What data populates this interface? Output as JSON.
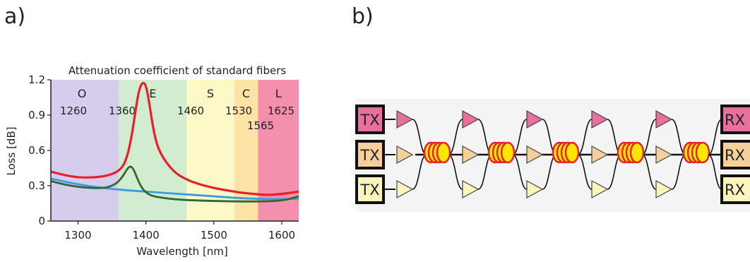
{
  "panels": {
    "a": "a)",
    "b": "b)"
  },
  "chart_data": {
    "type": "line",
    "title": "Attenuation  coefficient of standard fibers",
    "xlabel": "Wavelength [nm]",
    "ylabel": "Loss [dB]",
    "xlim": [
      1260,
      1625
    ],
    "ylim": [
      0,
      1.2
    ],
    "xticks": [
      1300,
      1400,
      1500,
      1600
    ],
    "yticks": [
      {
        "v": 0,
        "label": "0"
      },
      {
        "v": 0.3,
        "label": "0.3"
      },
      {
        "v": 0.6,
        "label": "0.6"
      },
      {
        "v": 0.9,
        "label": "0.9"
      },
      {
        "v": 1.2,
        "label": "1.2"
      }
    ],
    "grid": false,
    "bands": [
      {
        "name": "O",
        "start": 1260,
        "end": 1360,
        "color": "#d6cdec",
        "start_label": "1260"
      },
      {
        "name": "E",
        "start": 1360,
        "end": 1460,
        "color": "#d2ecd2",
        "start_label": "1360"
      },
      {
        "name": "S",
        "start": 1460,
        "end": 1530,
        "color": "#fdf8c8",
        "start_label": "1460"
      },
      {
        "name": "C",
        "start": 1530,
        "end": 1565,
        "color": "#fde3a6",
        "start_label": "1530"
      },
      {
        "name": "L",
        "start": 1565,
        "end": 1625,
        "color": "#f58fae",
        "start_label": "1565",
        "end_label": "1625"
      }
    ],
    "series": [
      {
        "color": "#e8202a",
        "x": [
          1260,
          1280,
          1300,
          1320,
          1340,
          1360,
          1370,
          1378,
          1385,
          1390,
          1395,
          1400,
          1405,
          1412,
          1420,
          1440,
          1460,
          1480,
          1500,
          1520,
          1540,
          1560,
          1580,
          1600,
          1625
        ],
        "y": [
          0.42,
          0.39,
          0.37,
          0.37,
          0.38,
          0.42,
          0.5,
          0.68,
          0.95,
          1.12,
          1.18,
          1.16,
          1.0,
          0.74,
          0.58,
          0.42,
          0.35,
          0.31,
          0.28,
          0.26,
          0.24,
          0.23,
          0.22,
          0.23,
          0.25
        ]
      },
      {
        "color": "#3a9be0",
        "x": [
          1260,
          1300,
          1350,
          1400,
          1450,
          1500,
          1550,
          1600,
          1625
        ],
        "y": [
          0.36,
          0.31,
          0.27,
          0.25,
          0.23,
          0.21,
          0.19,
          0.185,
          0.19
        ]
      },
      {
        "color": "#2e6a2e",
        "x": [
          1260,
          1280,
          1300,
          1320,
          1340,
          1355,
          1365,
          1372,
          1377,
          1382,
          1388,
          1395,
          1405,
          1420,
          1450,
          1500,
          1550,
          1600,
          1625
        ],
        "y": [
          0.34,
          0.31,
          0.29,
          0.28,
          0.28,
          0.31,
          0.37,
          0.44,
          0.47,
          0.44,
          0.35,
          0.27,
          0.22,
          0.2,
          0.18,
          0.17,
          0.165,
          0.17,
          0.21
        ]
      }
    ]
  },
  "link": {
    "tx_labels": [
      "TX",
      "TX",
      "TX"
    ],
    "rx_labels": [
      "RX",
      "RX",
      "RX"
    ],
    "channel_colors": [
      "#e9709c",
      "#f7cf9a",
      "#fbf5bd"
    ],
    "spans": 5
  }
}
